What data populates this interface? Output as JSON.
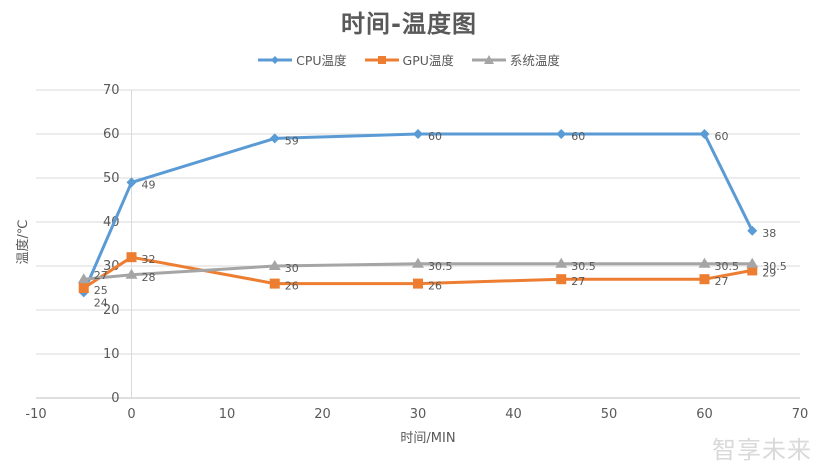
{
  "chart_data": {
    "type": "scatter",
    "subtype": "line-with-markers",
    "title": "时间-温度图",
    "xlabel": "时间/MIN",
    "ylabel": "温度/℃",
    "xlim": [
      -10,
      70
    ],
    "ylim": [
      0,
      70
    ],
    "xticks": [
      -10,
      0,
      10,
      20,
      30,
      40,
      50,
      60,
      70
    ],
    "yticks": [
      0,
      10,
      20,
      30,
      40,
      50,
      60,
      70
    ],
    "grid": "horizontal",
    "legend_position": "top",
    "x": [
      -5,
      0,
      15,
      30,
      45,
      60,
      65
    ],
    "series": [
      {
        "name": "CPU温度",
        "color": "#5B9BD5",
        "marker": "diamond",
        "values": [
          24,
          49,
          59,
          60,
          60,
          60,
          38
        ]
      },
      {
        "name": "GPU温度",
        "color": "#ED7D31",
        "marker": "square",
        "values": [
          25,
          32,
          26,
          26,
          27,
          27,
          29
        ]
      },
      {
        "name": "系统温度",
        "color": "#A5A5A5",
        "marker": "triangle",
        "values": [
          27,
          28,
          30,
          30.5,
          30.5,
          30.5,
          30.5
        ]
      }
    ]
  },
  "watermark": "智享未来"
}
